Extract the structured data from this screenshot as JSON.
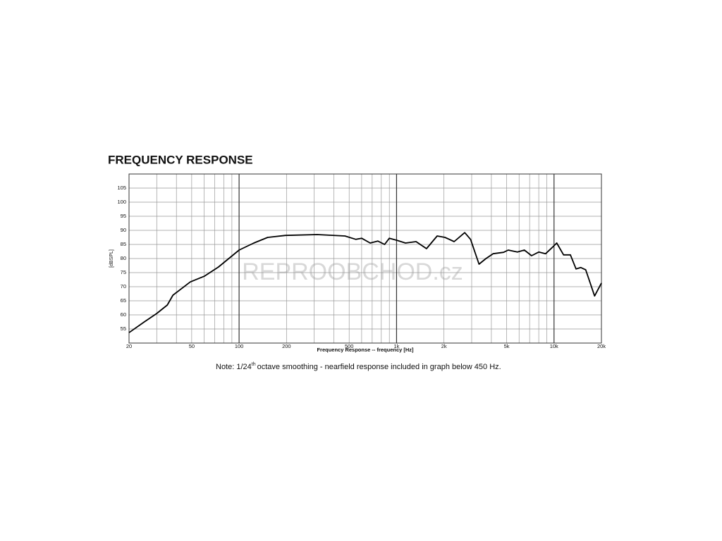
{
  "chart_data": {
    "type": "line",
    "title": "FREQUENCY RESPONSE",
    "y_label": "[dBSPL]",
    "x_label": "Frequency Response -- frequency [Hz]",
    "note": "Note: 1/24",
    "note_superscript": "th",
    "note_rest": "octave smoothing - nearfield response included in graph below 450 Hz.",
    "watermark": "REPROOBCHOD.cz",
    "log_x": true,
    "grid": true,
    "xlim": [
      20,
      20000
    ],
    "ylim": [
      50,
      110
    ],
    "xticks": [
      20,
      50,
      100,
      200,
      500,
      {
        "value": 1000,
        "label": "1k"
      },
      {
        "value": 2000,
        "label": "2k"
      },
      {
        "value": 5000,
        "label": "5k"
      },
      {
        "value": 10000,
        "label": "10k"
      },
      {
        "value": 20000,
        "label": "20k"
      }
    ],
    "xgrid": [
      30,
      40,
      60,
      70,
      80,
      90,
      300,
      400,
      600,
      700,
      800,
      900,
      3000,
      4000,
      6000,
      7000,
      8000,
      9000
    ],
    "yticks": [
      55,
      60,
      65,
      70,
      75,
      80,
      85,
      90,
      95,
      100,
      105
    ],
    "series": [
      {
        "color": "#000000",
        "x": [
          20,
          25,
          30,
          35,
          38,
          49,
          60,
          74,
          100,
          124,
          152,
          197,
          313,
          470,
          552,
          600,
          680,
          760,
          840,
          900,
          1000,
          1140,
          1330,
          1550,
          1810,
          2030,
          2320,
          2710,
          2950,
          3340,
          3700,
          4100,
          4780,
          5120,
          5850,
          6480,
          7200,
          8000,
          8840,
          9900,
          10400,
          11500,
          12700,
          13800,
          14800,
          15900,
          18100,
          20000
        ],
        "values": [
          53.7,
          57.5,
          60.5,
          63.5,
          67,
          71.7,
          73.7,
          77,
          83,
          85.5,
          87.5,
          88.2,
          88.5,
          88,
          86.8,
          87.2,
          85.5,
          86.2,
          85,
          87.2,
          86.5,
          85.5,
          86,
          83.5,
          88,
          87.5,
          86,
          89.2,
          86.8,
          78,
          80,
          81.7,
          82.2,
          83,
          82.3,
          83,
          81,
          82.3,
          81.7,
          84.3,
          85.5,
          81.3,
          81.3,
          76.3,
          76.8,
          76,
          66.7,
          71.3
        ]
      }
    ]
  }
}
